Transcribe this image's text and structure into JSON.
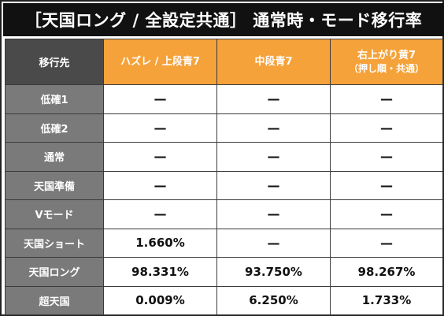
{
  "title": "［天国ロング / 全設定共通］ 通常時・モード移行率",
  "table": {
    "corner_label": "移行先",
    "columns": [
      {
        "label": "ハズレ / 上段青7",
        "sub": ""
      },
      {
        "label": "中段青7",
        "sub": ""
      },
      {
        "label": "右上がり黄7",
        "sub": "（押し順・共通）"
      }
    ],
    "rows": [
      {
        "label": "低確1",
        "values": [
          "—",
          "—",
          "—"
        ]
      },
      {
        "label": "低確2",
        "values": [
          "—",
          "—",
          "—"
        ]
      },
      {
        "label": "通常",
        "values": [
          "—",
          "—",
          "—"
        ]
      },
      {
        "label": "天国準備",
        "values": [
          "—",
          "—",
          "—"
        ]
      },
      {
        "label": "Vモード",
        "values": [
          "—",
          "—",
          "—"
        ]
      },
      {
        "label": "天国ショート",
        "values": [
          "1.660%",
          "—",
          "—"
        ]
      },
      {
        "label": "天国ロング",
        "values": [
          "98.331%",
          "93.750%",
          "98.267%"
        ]
      },
      {
        "label": "超天国",
        "values": [
          "0.009%",
          "6.250%",
          "1.733%"
        ]
      }
    ]
  },
  "colors": {
    "title_bg": "#111111",
    "corner_bg": "#4a4a4a",
    "column_header_bg": "#f5a23a",
    "row_header_bg": "#7a7a7a",
    "cell_bg": "#ffffff"
  }
}
